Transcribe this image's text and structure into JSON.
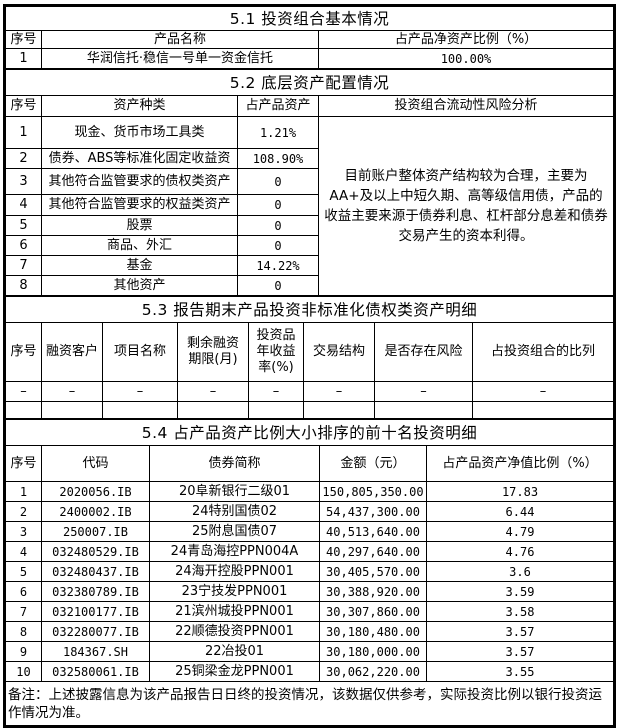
{
  "s51": {
    "title": "5.1 投资组合基本情况",
    "headers": [
      "序号",
      "产品名称",
      "占产品净资产比例（%）"
    ],
    "row": [
      "1",
      "华润信托·稳信一号单一资金信托",
      "100.00%"
    ]
  },
  "s52": {
    "title": "5.2 底层资产配置情况",
    "headers": [
      "序号",
      "资产种类",
      "占产品资产",
      "投资组合流动性风险分析"
    ],
    "rows": [
      [
        "1",
        "现金、货币市场工具类",
        "1.21%"
      ],
      [
        "2",
        "债券、ABS等标准化固定收益资",
        "108.90%"
      ],
      [
        "3",
        "其他符合监管要求的债权类资产",
        "0"
      ],
      [
        "4",
        "其他符合监管要求的权益类资产",
        "0"
      ],
      [
        "5",
        "股票",
        "0"
      ],
      [
        "6",
        "商品、外汇",
        "0"
      ],
      [
        "7",
        "基金",
        "14.22%"
      ],
      [
        "8",
        "其他资产",
        "0"
      ]
    ],
    "analysis": "目前账户整体资产结构较为合理，主要为AA+及以上中短久期、高等级信用债，产品的收益主要来源于债券利息、杠杆部分息差和债券交易产生的资本利得。"
  },
  "s53": {
    "title": "5.3 报告期末产品投资非标准化债权类资产明细",
    "headers": [
      "序号",
      "融资客户",
      "项目名称",
      "剩余融资期限(月)",
      "投资品年收益率(%)",
      "交易结构",
      "是否存在风险",
      "占投资组合的比列"
    ],
    "row": [
      "–",
      "–",
      "–",
      "–",
      "–",
      "–",
      "–",
      "–"
    ]
  },
  "s54": {
    "title": "5.4 占产品资产比例大小排序的前十名投资明细",
    "headers": [
      "序号",
      "代码",
      "债券简称",
      "金额（元）",
      "占产品资产净值比例（%）"
    ],
    "rows": [
      [
        "1",
        "2020056.IB",
        "20阜新银行二级01",
        "150,805,350.00",
        "17.83"
      ],
      [
        "2",
        "2400002.IB",
        "24特别国债02",
        "54,437,300.00",
        "6.44"
      ],
      [
        "3",
        "250007.IB",
        "25附息国债07",
        "40,513,640.00",
        "4.79"
      ],
      [
        "4",
        "032480529.IB",
        "24青岛海控PPN004A",
        "40,297,640.00",
        "4.76"
      ],
      [
        "5",
        "032480437.IB",
        "24海开控股PPN001",
        "30,405,570.00",
        "3.6"
      ],
      [
        "6",
        "032380789.IB",
        "23宁技发PPN001",
        "30,388,920.00",
        "3.59"
      ],
      [
        "7",
        "032100177.IB",
        "21滨州城投PPN001",
        "30,307,860.00",
        "3.58"
      ],
      [
        "8",
        "032280077.IB",
        "22顺德投资PPN001",
        "30,180,480.00",
        "3.57"
      ],
      [
        "9",
        "184367.SH",
        "22冶投01",
        "30,180,000.00",
        "3.57"
      ],
      [
        "10",
        "032580061.IB",
        "25铜梁金龙PPN001",
        "30,062,220.00",
        "3.55"
      ]
    ]
  },
  "note": "备注：上述披露信息为该产品报告日日终的投资情况，该数据仅供参考，实际投资比例以银行投资运作情况为准。"
}
